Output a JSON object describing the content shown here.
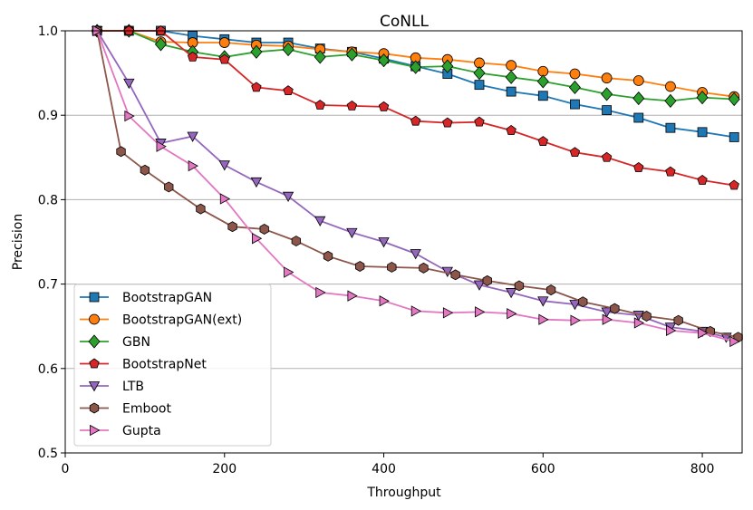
{
  "chart_data": {
    "type": "line",
    "title": "CoNLL",
    "xlabel": "Throughput",
    "ylabel": "Precision",
    "xlim": [
      0,
      850
    ],
    "ylim": [
      0.5,
      1.0
    ],
    "xticks": [
      0,
      200,
      400,
      600,
      800
    ],
    "yticks": [
      0.5,
      0.6,
      0.7,
      0.8,
      0.9,
      1.0
    ],
    "ytick_labels": [
      "0.5",
      "0.6",
      "0.7",
      "0.8",
      "0.9",
      "1.0"
    ],
    "grid": "horizontal",
    "legend_position": "lower-left",
    "series": [
      {
        "name": "BootstrapGAN",
        "color": "#1f77b4",
        "marker": "square",
        "x": [
          40,
          80,
          120,
          160,
          200,
          240,
          280,
          320,
          360,
          400,
          440,
          480,
          520,
          560,
          600,
          640,
          680,
          720,
          760,
          800,
          840
        ],
        "y": [
          1.0,
          1.0,
          1.0,
          0.994,
          0.99,
          0.986,
          0.986,
          0.979,
          0.975,
          0.967,
          0.958,
          0.949,
          0.936,
          0.928,
          0.923,
          0.913,
          0.906,
          0.897,
          0.885,
          0.88,
          0.874
        ]
      },
      {
        "name": "BootstrapGAN(ext)",
        "color": "#ff7f0e",
        "marker": "circle",
        "x": [
          40,
          80,
          120,
          160,
          200,
          240,
          280,
          320,
          360,
          400,
          440,
          480,
          520,
          560,
          600,
          640,
          680,
          720,
          760,
          800,
          840
        ],
        "y": [
          1.0,
          1.0,
          0.987,
          0.986,
          0.986,
          0.983,
          0.982,
          0.978,
          0.975,
          0.973,
          0.968,
          0.966,
          0.962,
          0.959,
          0.952,
          0.949,
          0.944,
          0.941,
          0.934,
          0.927,
          0.922
        ]
      },
      {
        "name": "GBN",
        "color": "#2ca02c",
        "marker": "diamond",
        "x": [
          40,
          80,
          120,
          160,
          200,
          240,
          280,
          320,
          360,
          400,
          440,
          480,
          520,
          560,
          600,
          640,
          680,
          720,
          760,
          800,
          840
        ],
        "y": [
          1.0,
          1.0,
          0.984,
          0.975,
          0.969,
          0.975,
          0.978,
          0.969,
          0.972,
          0.965,
          0.957,
          0.958,
          0.95,
          0.945,
          0.94,
          0.933,
          0.925,
          0.92,
          0.917,
          0.921,
          0.919
        ]
      },
      {
        "name": "BootstrapNet",
        "color": "#d62728",
        "marker": "pentagon",
        "x": [
          40,
          80,
          120,
          160,
          200,
          240,
          280,
          320,
          360,
          400,
          440,
          480,
          520,
          560,
          600,
          640,
          680,
          720,
          760,
          800,
          840
        ],
        "y": [
          1.0,
          1.0,
          1.0,
          0.969,
          0.966,
          0.933,
          0.929,
          0.912,
          0.911,
          0.91,
          0.893,
          0.891,
          0.892,
          0.882,
          0.869,
          0.856,
          0.85,
          0.838,
          0.833,
          0.823,
          0.817
        ]
      },
      {
        "name": "LTB",
        "color": "#9467bd",
        "marker": "triangle-down",
        "x": [
          40,
          80,
          120,
          160,
          200,
          240,
          280,
          320,
          360,
          400,
          440,
          480,
          520,
          560,
          600,
          640,
          680,
          720,
          760,
          800,
          830
        ],
        "y": [
          1.0,
          0.938,
          0.867,
          0.875,
          0.841,
          0.821,
          0.804,
          0.775,
          0.761,
          0.75,
          0.736,
          0.715,
          0.699,
          0.69,
          0.68,
          0.676,
          0.667,
          0.663,
          0.649,
          0.644,
          0.637
        ]
      },
      {
        "name": "Emboot",
        "color": "#8c564b",
        "marker": "hexagon",
        "x": [
          40,
          70,
          100,
          130,
          170,
          210,
          250,
          290,
          330,
          370,
          410,
          450,
          490,
          530,
          570,
          610,
          650,
          690,
          730,
          770,
          810,
          845
        ],
        "y": [
          1.0,
          0.857,
          0.835,
          0.815,
          0.789,
          0.768,
          0.765,
          0.751,
          0.733,
          0.721,
          0.72,
          0.719,
          0.711,
          0.704,
          0.698,
          0.693,
          0.679,
          0.671,
          0.662,
          0.657,
          0.644,
          0.637
        ]
      },
      {
        "name": "Gupta",
        "color": "#e377c2",
        "marker": "triangle-right",
        "x": [
          40,
          80,
          120,
          160,
          200,
          240,
          280,
          320,
          360,
          400,
          440,
          480,
          520,
          560,
          600,
          640,
          680,
          720,
          760,
          800,
          840
        ],
        "y": [
          1.0,
          0.899,
          0.863,
          0.84,
          0.801,
          0.754,
          0.714,
          0.69,
          0.686,
          0.68,
          0.668,
          0.666,
          0.667,
          0.665,
          0.658,
          0.657,
          0.658,
          0.654,
          0.645,
          0.642,
          0.632
        ]
      }
    ]
  }
}
